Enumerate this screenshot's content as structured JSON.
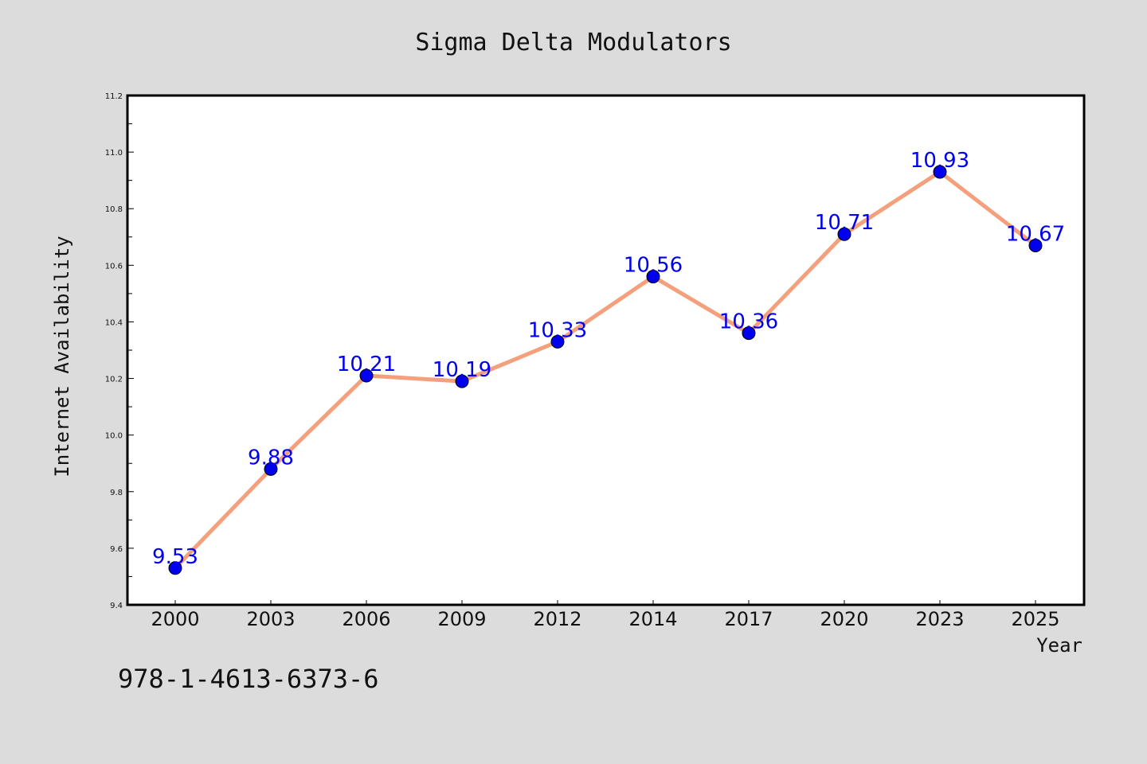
{
  "chart_data": {
    "type": "line",
    "title": "Sigma Delta Modulators",
    "xlabel": "Year",
    "ylabel": "Internet Availability",
    "categories": [
      "2000",
      "2003",
      "2006",
      "2009",
      "2012",
      "2014",
      "2017",
      "2020",
      "2023",
      "2025"
    ],
    "series": [
      {
        "values": [
          9.53,
          9.88,
          10.21,
          10.19,
          10.33,
          10.56,
          10.36,
          10.71,
          10.93,
          10.67
        ]
      }
    ],
    "data_labels": [
      "9.53",
      "9.88",
      "10.21",
      "10.19",
      "10.33",
      "10.56",
      "10.36",
      "10.71",
      "10.93",
      "10.67"
    ],
    "ylim": [
      9.4,
      11.2
    ],
    "yticks": [
      "9.4",
      "9.6",
      "9.8",
      "10.0",
      "10.2",
      "10.4",
      "10.6",
      "10.8",
      "11.0",
      "11.2"
    ],
    "grid": false,
    "legend": "none",
    "colors": {
      "line": "#f4a07c",
      "marker": "#0000ee",
      "label": "#0000ee",
      "background": "#dcdcdc",
      "plot_background": "#ffffff"
    }
  },
  "footer": {
    "isbn": "978-1-4613-6373-6"
  }
}
